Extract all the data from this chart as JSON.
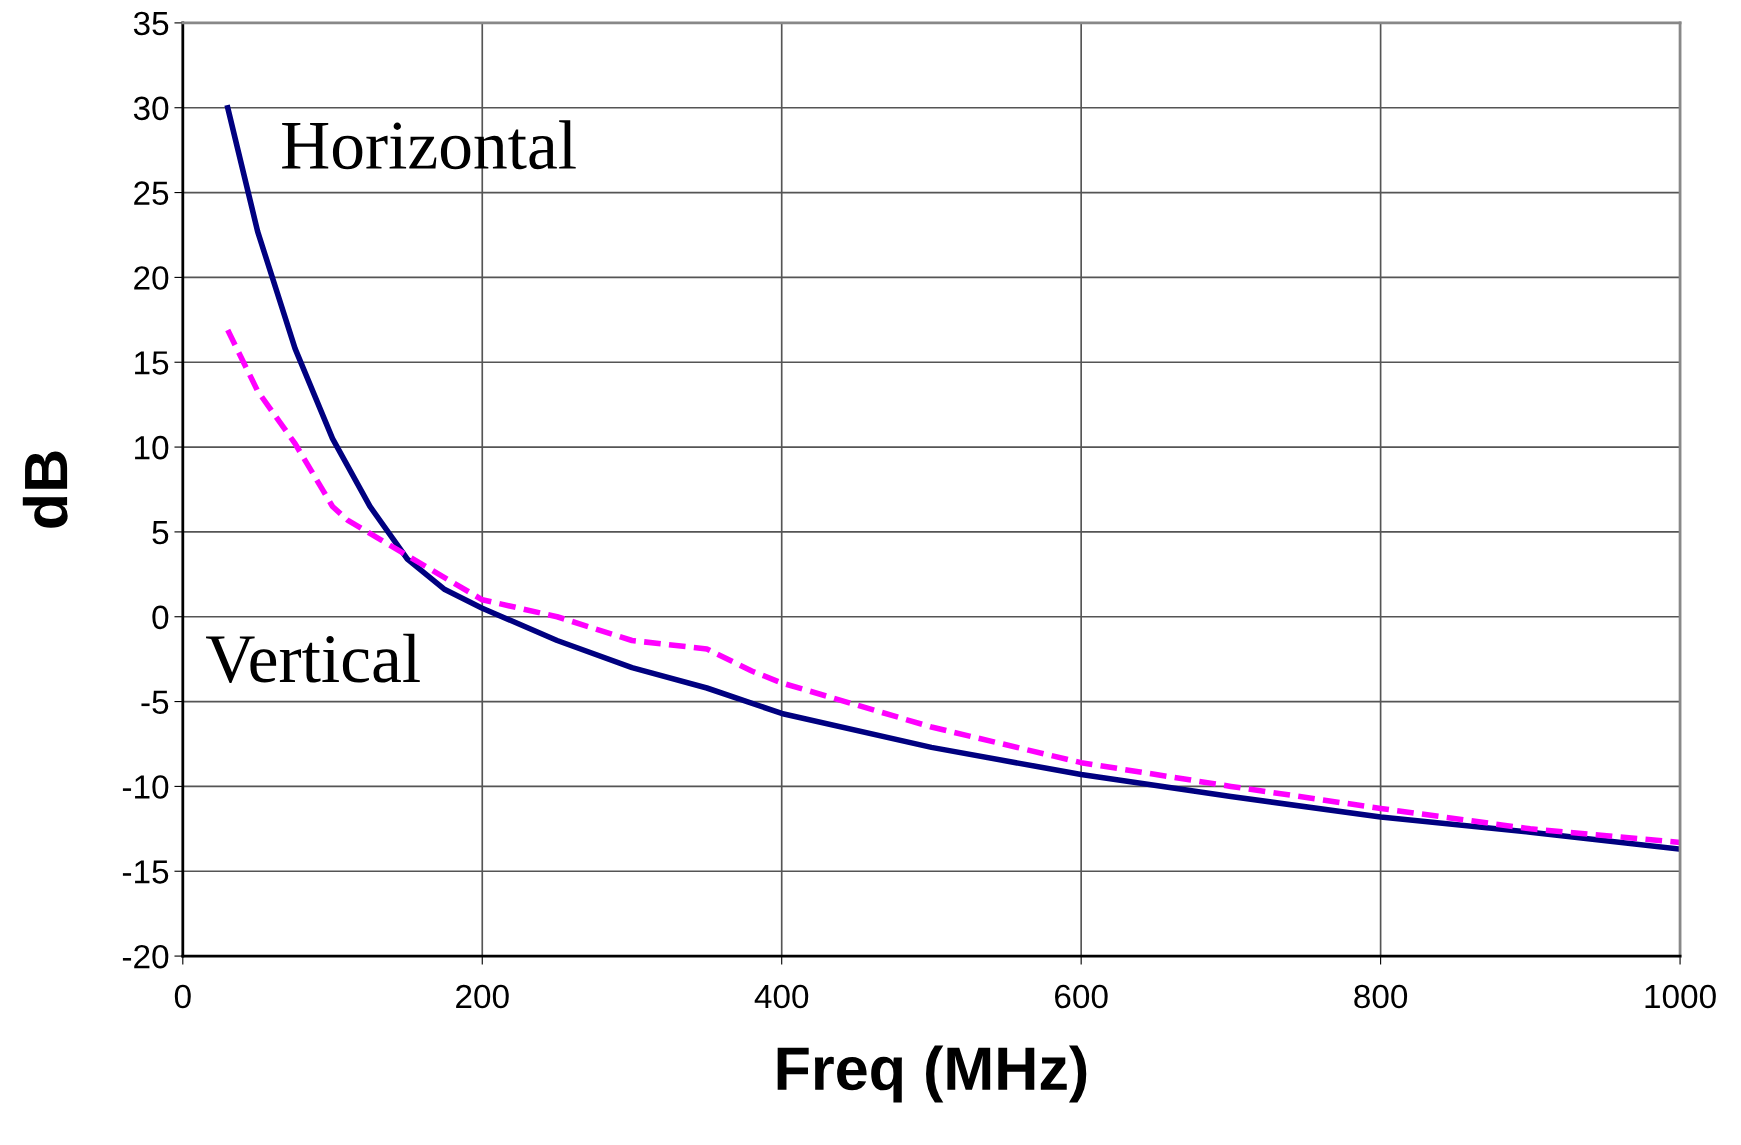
{
  "chart_data": {
    "type": "line",
    "xlabel": "Freq (MHz)",
    "ylabel": "dB",
    "xlim": [
      0,
      1000
    ],
    "xticks": [
      0,
      200,
      400,
      600,
      800,
      1000
    ],
    "ylim": [
      -20,
      35
    ],
    "yticks": [
      -20,
      -15,
      -10,
      -5,
      0,
      5,
      10,
      15,
      20,
      25,
      30,
      35
    ],
    "grid": true,
    "legend": false,
    "series": [
      {
        "name": "Horizontal",
        "color": "#000080",
        "line_style": "solid",
        "x": [
          30,
          50,
          75,
          100,
          125,
          150,
          175,
          200,
          250,
          300,
          350,
          400,
          500,
          600,
          700,
          800,
          900,
          1000
        ],
        "values": [
          30,
          22.7,
          15.8,
          10.5,
          6.5,
          3.4,
          1.6,
          0.5,
          -1.4,
          -3.0,
          -4.2,
          -5.7,
          -7.7,
          -9.3,
          -10.6,
          -11.8,
          -12.7,
          -13.7
        ]
      },
      {
        "name": "Vertical",
        "color": "#ff00ff",
        "line_style": "dashed",
        "x": [
          30,
          50,
          75,
          100,
          110,
          150,
          200,
          250,
          300,
          350,
          380,
          400,
          500,
          600,
          700,
          800,
          900,
          1000
        ],
        "values": [
          16.9,
          13.3,
          10.2,
          6.5,
          5.7,
          3.6,
          1.0,
          0.0,
          -1.4,
          -1.9,
          -3.2,
          -3.9,
          -6.5,
          -8.6,
          -10.0,
          -11.3,
          -12.5,
          -13.3
        ]
      }
    ]
  }
}
